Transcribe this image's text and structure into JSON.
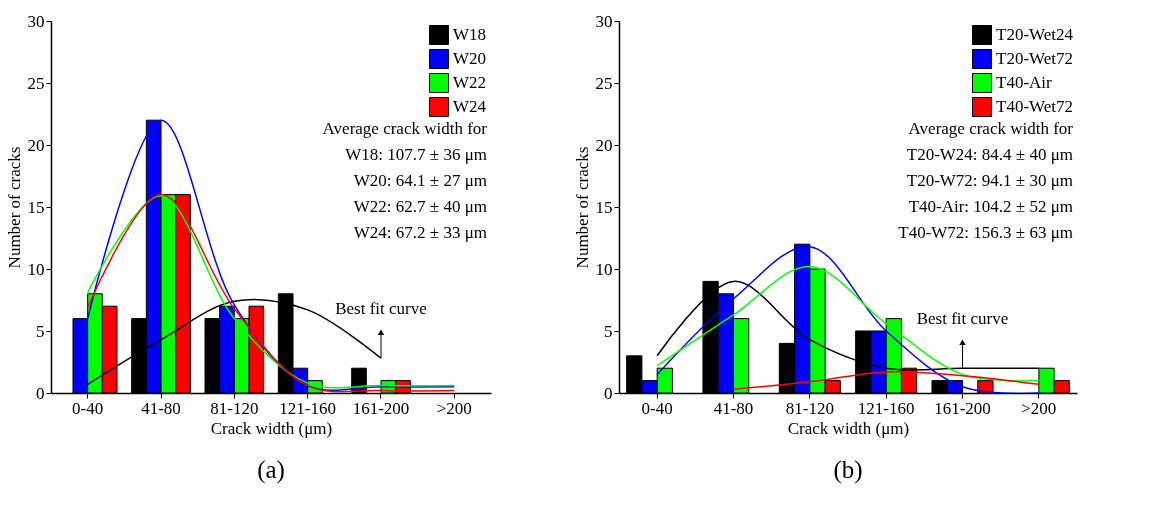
{
  "chart_data": [
    {
      "type": "bar",
      "title": "(a)",
      "xlabel": "Crack width (μm)",
      "ylabel": "Number of cracks",
      "categories": [
        "0-40",
        "41-80",
        "81-120",
        "121-160",
        "161-200",
        ">200"
      ],
      "ylim": [
        0,
        30
      ],
      "yticks": [
        0,
        5,
        10,
        15,
        20,
        25,
        30
      ],
      "legend": "top right",
      "annotations": [
        "Average crack width for",
        "W18: 107.7 ± 36 μm",
        "W20: 64.1 ± 27 μm",
        "W22: 62.7 ± 40 μm",
        "W24: 67.2 ± 33 μm",
        {
          "text": "Best fit curve",
          "x": "161-200",
          "y": 2.8
        }
      ],
      "series": [
        {
          "name": "W18",
          "color": "#000000",
          "values": [
            0,
            6,
            6,
            8,
            2,
            0
          ]
        },
        {
          "name": "W20",
          "color": "#0000ff",
          "values": [
            6,
            22,
            7,
            2,
            0,
            0
          ]
        },
        {
          "name": "W22",
          "color": "#00ff00",
          "values": [
            8,
            16,
            6,
            1,
            1,
            0
          ]
        },
        {
          "name": "W24",
          "color": "#ff0000",
          "values": [
            7,
            16,
            7,
            0,
            1,
            0
          ]
        },
        {
          "type": "line",
          "color": "#000000",
          "values": [
            0.7,
            4.3,
            7.4,
            6.7,
            2.8,
            null
          ]
        },
        {
          "type": "line",
          "color": "#0000ff",
          "values": [
            6.0,
            22,
            7.1,
            0.6,
            0.5,
            0.5
          ]
        },
        {
          "type": "line",
          "color": "#00ff00",
          "values": [
            8.1,
            15.9,
            6.0,
            0.8,
            0.6,
            0.6
          ]
        },
        {
          "type": "line",
          "color": "#ff0000",
          "values": [
            6.9,
            16,
            6.8,
            0.6,
            0.2,
            0.2
          ]
        }
      ]
    },
    {
      "type": "bar",
      "title": "(b)",
      "xlabel": "Crack width (μm)",
      "ylabel": "Number of cracks",
      "categories": [
        "0-40",
        "41-80",
        "81-120",
        "121-160",
        "161-200",
        ">200"
      ],
      "ylim": [
        0,
        30
      ],
      "yticks": [
        0,
        5,
        10,
        15,
        20,
        25,
        30
      ],
      "legend": "top right",
      "annotations": [
        "Average crack width for",
        "T20-W24: 84.4 ± 40 μm",
        "T20-W72: 94.1 ± 30 μm",
        "T40-Air: 104.2 ± 52 μm",
        "T40-W72: 156.3 ± 63 μm",
        {
          "text": "Best fit curve",
          "x": "161-200",
          "y": 2.0
        }
      ],
      "series": [
        {
          "name": "T20-Wet24",
          "color": "#000000",
          "values": [
            3,
            9,
            4,
            5,
            1,
            0
          ]
        },
        {
          "name": "T20-Wet72",
          "color": "#0000ff",
          "values": [
            1,
            8,
            12,
            5,
            1,
            0
          ]
        },
        {
          "name": "T40-Air",
          "color": "#00ff00",
          "values": [
            2,
            6,
            10,
            6,
            0,
            2
          ]
        },
        {
          "name": "T40-Wet72",
          "color": "#ff0000",
          "values": [
            0,
            0,
            1,
            2,
            1,
            1
          ]
        },
        {
          "type": "line",
          "color": "#000000",
          "values": [
            3.0,
            9.0,
            4.3,
            2.0,
            2.0,
            2.0
          ]
        },
        {
          "type": "line",
          "color": "#0000ff",
          "values": [
            1.5,
            7.6,
            11.8,
            5.0,
            0.5,
            0.0
          ]
        },
        {
          "type": "line",
          "color": "#00ff00",
          "values": [
            2.2,
            6.3,
            10.2,
            5.6,
            1.5,
            1.0
          ]
        },
        {
          "type": "line",
          "color": "#ff0000",
          "values": [
            null,
            0.3,
            0.9,
            1.7,
            1.4,
            0.7
          ]
        }
      ]
    }
  ]
}
